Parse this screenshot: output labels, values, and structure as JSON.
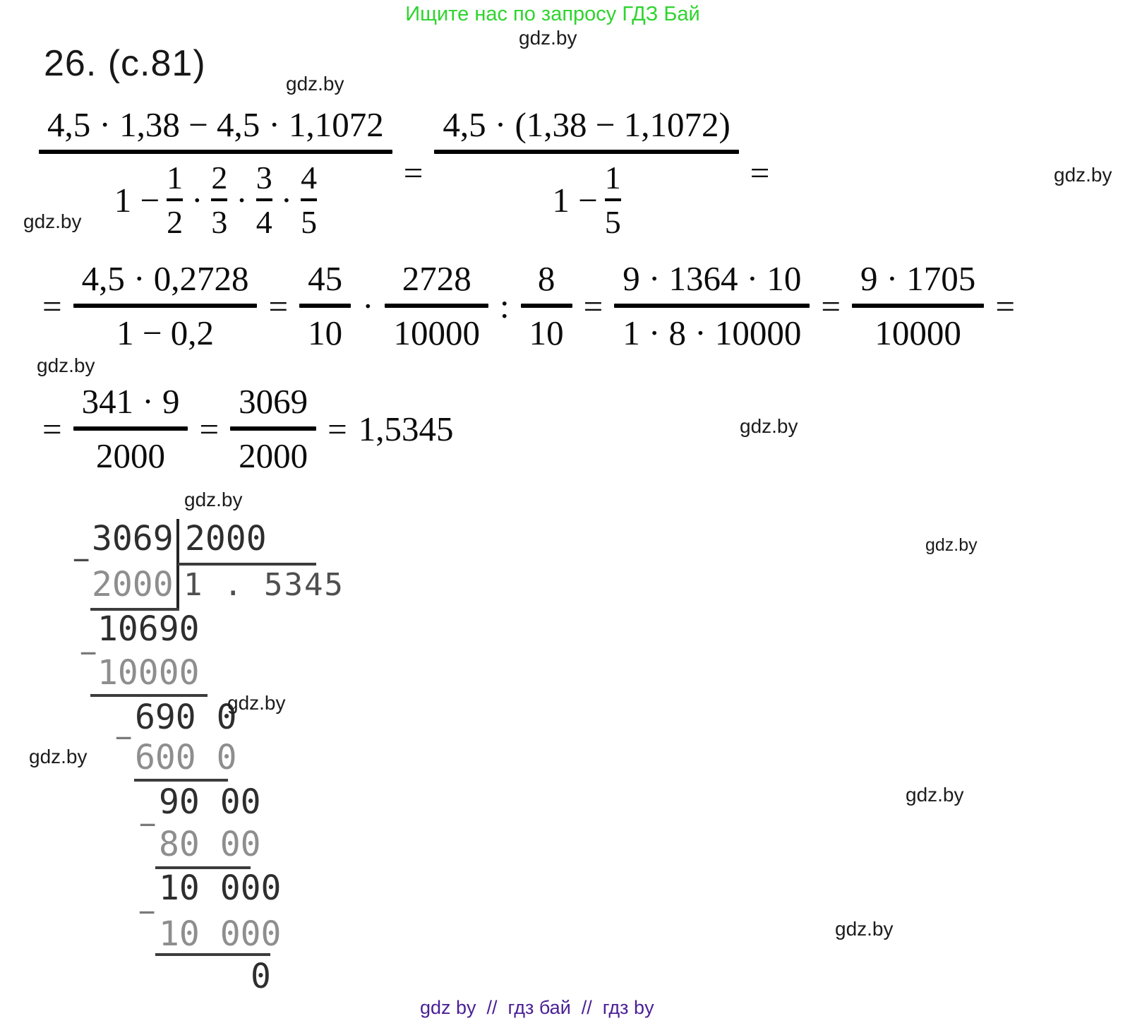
{
  "banner": {
    "text": "Ищите нас по запросу ГДЗ Бай",
    "color": "#2ed42e"
  },
  "watermark": {
    "text": "gdz.by"
  },
  "heading": "26. (с.81)",
  "math": {
    "eq": "=",
    "dot": "·",
    "colon": ":",
    "line1": {
      "f1": {
        "num": "4,5 · 1,38 − 4,5 · 1,1072",
        "den_prefix": "1 −",
        "den_fracs": [
          {
            "n": "1",
            "d": "2"
          },
          {
            "n": "2",
            "d": "3"
          },
          {
            "n": "3",
            "d": "4"
          },
          {
            "n": "4",
            "d": "5"
          }
        ]
      },
      "f2": {
        "num": "4,5 · (1,38 − 1,1072)",
        "den_prefix": "1 −",
        "den_frac": {
          "n": "1",
          "d": "5"
        }
      }
    },
    "line2": {
      "f1": {
        "num": "4,5 · 0,2728",
        "den": "1 − 0,2"
      },
      "f2": {
        "n": "45",
        "d": "10"
      },
      "f3": {
        "n": "2728",
        "d": "10000"
      },
      "f4": {
        "n": "8",
        "d": "10"
      },
      "f5": {
        "num": "9 · 1364 · 10",
        "den": "1 · 8 · 10000"
      },
      "f6": {
        "num": "9 · 1705",
        "den": "10000"
      }
    },
    "line3": {
      "f1": {
        "num": "341 · 9",
        "den": "2000"
      },
      "f2": {
        "num": "3069",
        "den": "2000"
      },
      "result": "1,5345"
    }
  },
  "division": {
    "dividend": "3069",
    "divisor": "2000",
    "quotient": "1 . 5345",
    "minus": "−",
    "steps": [
      {
        "text": "2000"
      },
      {
        "text": "10690"
      },
      {
        "text": "10000"
      },
      {
        "text": "690 0"
      },
      {
        "text": "600 0"
      },
      {
        "text": "90 00"
      },
      {
        "text": "80 00"
      },
      {
        "text": "10 000"
      },
      {
        "text": "10 000"
      },
      {
        "text": "0"
      }
    ]
  },
  "footer": {
    "text": "gdz by  //  гдз бай  //  гдз by",
    "color": "#4b2095"
  }
}
